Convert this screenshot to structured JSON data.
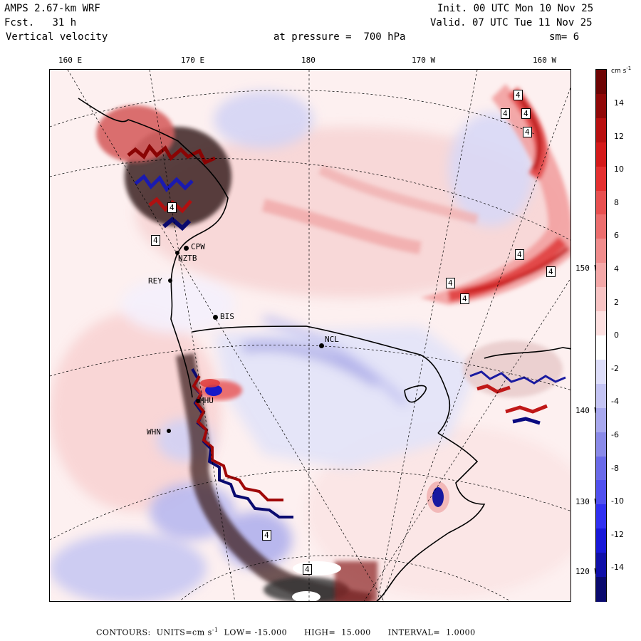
{
  "header": {
    "model": "AMPS 2.67-km WRF",
    "fcst_label": "Fcst.",
    "fcst_value": "31 h",
    "variable": "Vertical velocity",
    "init": "Init. 00 UTC Mon 10 Nov 25",
    "valid": "Valid. 07 UTC Tue 11 Nov 25",
    "level_label": "at pressure =",
    "level_value": "700 hPa",
    "smooth": "sm= 6"
  },
  "axis": {
    "top_labels": [
      "160 E",
      "170 E",
      "180",
      "170 W",
      "160 W"
    ],
    "right_labels": [
      "150 W",
      "140 W",
      "130 W",
      "120 W"
    ]
  },
  "stations": [
    {
      "code": "CPW"
    },
    {
      "code": "NZTB"
    },
    {
      "code": "REY"
    },
    {
      "code": "BIS"
    },
    {
      "code": "NCL"
    },
    {
      "code": "MHU"
    },
    {
      "code": "WHN"
    }
  ],
  "contour_label": "4",
  "colorbar": {
    "units": "cm s",
    "units_exp": "-1",
    "ticks": [
      "14",
      "12",
      "10",
      "8",
      "6",
      "4",
      "2",
      "0",
      "-2",
      "-4",
      "-6",
      "-8",
      "-10",
      "-12",
      "-14"
    ],
    "colors": [
      "#0a0a6e",
      "#1010a8",
      "#1818d8",
      "#3030f0",
      "#5050ee",
      "#6a6ae8",
      "#8a8ae8",
      "#a8a8ee",
      "#c4c4f4",
      "#dedefa",
      "#ffffff",
      "#fde0e0",
      "#f8c4c4",
      "#f4a8a8",
      "#f08c8c",
      "#ec6e6e",
      "#e85050",
      "#e43030",
      "#d41a1a",
      "#b81010",
      "#900808",
      "#6e0404"
    ]
  },
  "footer": {
    "contours_label": "CONTOURS:",
    "units_label": "UNITS=cm s",
    "units_exp": "-1",
    "low_label": "LOW=",
    "low_value": "-15.000",
    "high_label": "HIGH=",
    "high_value": "15.000",
    "interval_label": "INTERVAL=",
    "interval_value": "1.0000"
  }
}
